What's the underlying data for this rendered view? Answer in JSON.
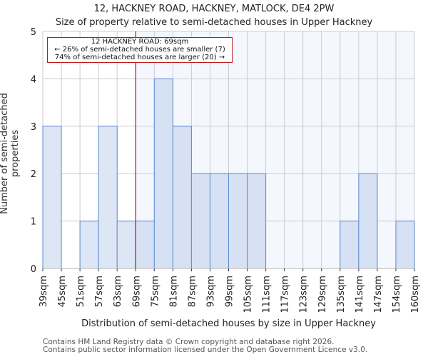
{
  "header": {
    "title": "12, HACKNEY ROAD, HACKNEY, MATLOCK, DE4 2PW",
    "subtitle": "Size of property relative to semi-detached houses in Upper Hackney"
  },
  "annotation": {
    "line1": "12 HACKNEY ROAD: 69sqm",
    "line2": "← 26% of semi-detached houses are smaller (7)",
    "line3": "74% of semi-detached houses are larger (20) →"
  },
  "footer": {
    "credit1": "Contains HM Land Registry data © Crown copyright and database right 2026.",
    "credit2": "Contains public sector information licensed under the Open Government Licence v3.0."
  },
  "colors": {
    "bar_left": "#dde6f4",
    "bar_right": "#d6e1f3",
    "bar_edge": "#5b8bd0",
    "bg_right": "#f4f7fd",
    "grid": "#cccccc",
    "marker": "#b71c1c"
  },
  "chart_data": {
    "type": "bar",
    "title": "12, HACKNEY ROAD, HACKNEY, MATLOCK, DE4 2PW",
    "subtitle": "Size of property relative to semi-detached houses in Upper Hackney",
    "xlabel": "Distribution of semi-detached houses by size in Upper Hackney",
    "ylabel": "Number of semi-detached properties",
    "categories": [
      "39sqm",
      "45sqm",
      "51sqm",
      "57sqm",
      "63sqm",
      "69sqm",
      "75sqm",
      "81sqm",
      "87sqm",
      "93sqm",
      "99sqm",
      "105sqm",
      "111sqm",
      "117sqm",
      "123sqm",
      "129sqm",
      "135sqm",
      "141sqm",
      "147sqm",
      "154sqm"
    ],
    "x_tick_labels": [
      "39sqm",
      "45sqm",
      "51sqm",
      "57sqm",
      "63sqm",
      "69sqm",
      "75sqm",
      "81sqm",
      "87sqm",
      "93sqm",
      "99sqm",
      "105sqm",
      "111sqm",
      "117sqm",
      "123sqm",
      "129sqm",
      "135sqm",
      "141sqm",
      "147sqm",
      "154sqm",
      "160sqm"
    ],
    "values": [
      3,
      0,
      1,
      3,
      1,
      1,
      4,
      3,
      2,
      2,
      2,
      2,
      0,
      0,
      0,
      0,
      1,
      2,
      0,
      1
    ],
    "ylim": [
      0,
      5
    ],
    "yticks": [
      0,
      1,
      2,
      3,
      4,
      5
    ],
    "grid": true,
    "marker": {
      "value": "69sqm",
      "label": "12 HACKNEY ROAD: 69sqm"
    }
  }
}
